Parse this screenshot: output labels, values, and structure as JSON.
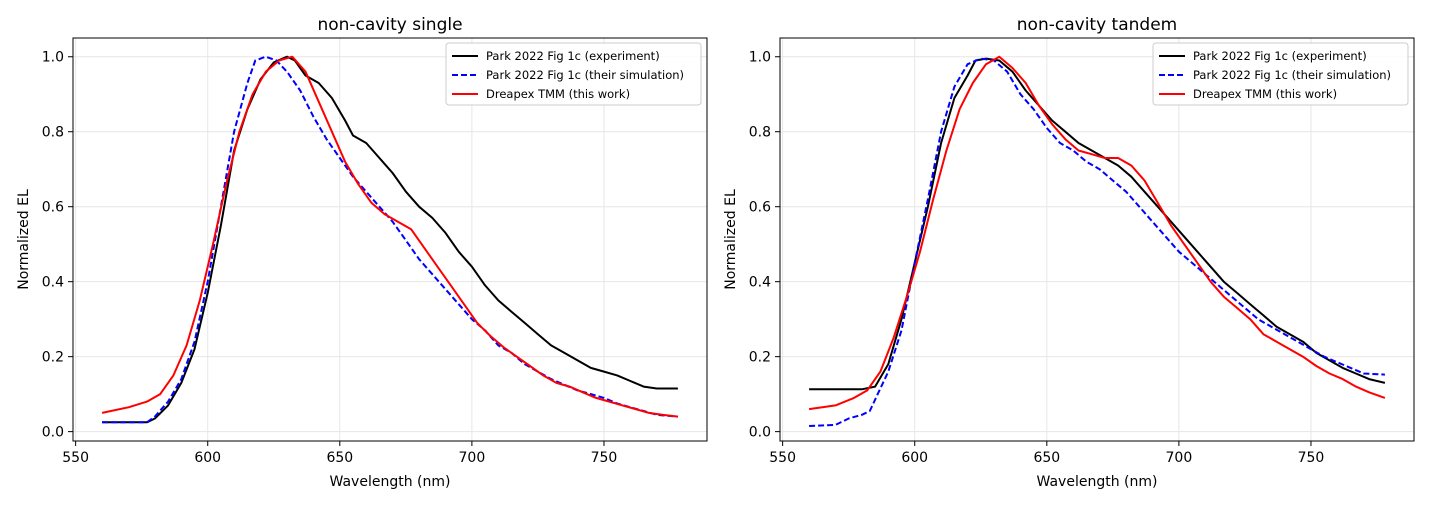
{
  "chart_data": [
    {
      "type": "line",
      "title": "non-cavity single",
      "xlabel": "Wavelength (nm)",
      "ylabel": "Normalized EL",
      "xlim": [
        549,
        789
      ],
      "ylim": [
        -0.025,
        1.05
      ],
      "xticks": [
        550,
        600,
        650,
        700,
        750
      ],
      "yticks": [
        0.0,
        0.2,
        0.4,
        0.6,
        0.8,
        1.0
      ],
      "xtick_labels": [
        "550",
        "600",
        "650",
        "700",
        "750"
      ],
      "ytick_labels": [
        "0.0",
        "0.2",
        "0.4",
        "0.6",
        "0.8",
        "1.0"
      ],
      "grid": true,
      "legend_position": "top-right",
      "series": [
        {
          "name": "Park 2022 Fig 1c (experiment)",
          "color": "#000000",
          "style": "solid",
          "x": [
            560,
            570,
            577,
            580,
            585,
            590,
            595,
            600,
            605,
            610,
            615,
            620,
            625,
            630,
            633,
            637,
            642,
            647,
            652,
            655,
            660,
            665,
            670,
            675,
            680,
            685,
            690,
            695,
            700,
            705,
            710,
            715,
            720,
            725,
            730,
            735,
            740,
            745,
            750,
            755,
            760,
            765,
            770,
            778
          ],
          "y": [
            0.025,
            0.025,
            0.025,
            0.035,
            0.07,
            0.13,
            0.22,
            0.37,
            0.55,
            0.75,
            0.86,
            0.94,
            0.985,
            1.0,
            0.99,
            0.95,
            0.93,
            0.89,
            0.83,
            0.79,
            0.77,
            0.73,
            0.69,
            0.64,
            0.6,
            0.57,
            0.53,
            0.48,
            0.44,
            0.39,
            0.35,
            0.32,
            0.29,
            0.26,
            0.23,
            0.21,
            0.19,
            0.17,
            0.16,
            0.15,
            0.135,
            0.12,
            0.115,
            0.115
          ]
        },
        {
          "name": "Park 2022 Fig 1c (their simulation)",
          "color": "#0000ff",
          "style": "dashed",
          "x": [
            560,
            570,
            577,
            580,
            585,
            590,
            595,
            600,
            605,
            610,
            615,
            618,
            622,
            626,
            630,
            635,
            640,
            645,
            650,
            655,
            660,
            665,
            670,
            675,
            680,
            685,
            690,
            695,
            700,
            705,
            710,
            715,
            720,
            725,
            730,
            735,
            740,
            745,
            750,
            755,
            760,
            765,
            770,
            778
          ],
          "y": [
            0.025,
            0.025,
            0.025,
            0.04,
            0.08,
            0.14,
            0.24,
            0.4,
            0.6,
            0.8,
            0.93,
            0.99,
            1.0,
            0.99,
            0.96,
            0.91,
            0.84,
            0.78,
            0.73,
            0.68,
            0.64,
            0.6,
            0.56,
            0.51,
            0.46,
            0.42,
            0.38,
            0.34,
            0.3,
            0.27,
            0.23,
            0.21,
            0.18,
            0.16,
            0.14,
            0.125,
            0.11,
            0.1,
            0.09,
            0.075,
            0.065,
            0.055,
            0.045,
            0.04
          ]
        },
        {
          "name": "Dreapex TMM (this work)",
          "color": "#ff0000",
          "style": "solid",
          "x": [
            560,
            570,
            577,
            582,
            587,
            592,
            597,
            602,
            607,
            612,
            617,
            622,
            627,
            632,
            637,
            642,
            647,
            652,
            657,
            662,
            667,
            672,
            677,
            682,
            687,
            692,
            697,
            702,
            707,
            712,
            717,
            722,
            727,
            732,
            737,
            742,
            747,
            752,
            757,
            762,
            767,
            772,
            778
          ],
          "y": [
            0.05,
            0.065,
            0.08,
            0.1,
            0.15,
            0.23,
            0.35,
            0.5,
            0.66,
            0.8,
            0.9,
            0.96,
            0.99,
            1.0,
            0.96,
            0.88,
            0.8,
            0.72,
            0.66,
            0.61,
            0.58,
            0.56,
            0.54,
            0.49,
            0.44,
            0.39,
            0.34,
            0.29,
            0.255,
            0.225,
            0.2,
            0.175,
            0.15,
            0.13,
            0.12,
            0.105,
            0.09,
            0.08,
            0.07,
            0.06,
            0.05,
            0.045,
            0.04
          ]
        }
      ]
    },
    {
      "type": "line",
      "title": "non-cavity tandem",
      "xlabel": "Wavelength (nm)",
      "ylabel": "Normalized EL",
      "xlim": [
        549,
        789
      ],
      "ylim": [
        -0.025,
        1.05
      ],
      "xticks": [
        550,
        600,
        650,
        700,
        750
      ],
      "yticks": [
        0.0,
        0.2,
        0.4,
        0.6,
        0.8,
        1.0
      ],
      "xtick_labels": [
        "550",
        "600",
        "650",
        "700",
        "750"
      ],
      "ytick_labels": [
        "0.0",
        "0.2",
        "0.4",
        "0.6",
        "0.8",
        "1.0"
      ],
      "grid": true,
      "legend_position": "top-right",
      "series": [
        {
          "name": "Park 2022 Fig 1c (experiment)",
          "color": "#000000",
          "style": "solid",
          "x": [
            560,
            570,
            580,
            585,
            590,
            595,
            600,
            605,
            610,
            615,
            620,
            623,
            627,
            632,
            637,
            642,
            647,
            652,
            657,
            662,
            667,
            672,
            677,
            682,
            687,
            692,
            697,
            702,
            707,
            712,
            717,
            722,
            727,
            732,
            737,
            742,
            747,
            752,
            757,
            762,
            767,
            772,
            778
          ],
          "y": [
            0.113,
            0.113,
            0.113,
            0.12,
            0.18,
            0.3,
            0.45,
            0.6,
            0.77,
            0.89,
            0.95,
            0.99,
            0.995,
            0.99,
            0.96,
            0.91,
            0.87,
            0.83,
            0.8,
            0.77,
            0.75,
            0.73,
            0.71,
            0.68,
            0.64,
            0.6,
            0.56,
            0.52,
            0.48,
            0.44,
            0.4,
            0.37,
            0.34,
            0.31,
            0.28,
            0.26,
            0.24,
            0.21,
            0.19,
            0.17,
            0.155,
            0.14,
            0.13
          ]
        },
        {
          "name": "Park 2022 Fig 1c (their simulation)",
          "color": "#0000ff",
          "style": "dashed",
          "x": [
            560,
            570,
            575,
            580,
            583,
            586,
            590,
            595,
            600,
            605,
            610,
            615,
            620,
            625,
            630,
            635,
            640,
            645,
            650,
            655,
            660,
            665,
            670,
            675,
            680,
            685,
            690,
            695,
            700,
            705,
            710,
            715,
            720,
            725,
            730,
            735,
            740,
            745,
            750,
            755,
            760,
            765,
            770,
            778
          ],
          "y": [
            0.015,
            0.018,
            0.035,
            0.045,
            0.055,
            0.1,
            0.16,
            0.27,
            0.45,
            0.62,
            0.8,
            0.92,
            0.98,
            0.995,
            0.99,
            0.96,
            0.9,
            0.86,
            0.81,
            0.77,
            0.75,
            0.72,
            0.7,
            0.67,
            0.64,
            0.6,
            0.56,
            0.52,
            0.48,
            0.45,
            0.42,
            0.39,
            0.36,
            0.33,
            0.3,
            0.28,
            0.26,
            0.24,
            0.22,
            0.2,
            0.185,
            0.17,
            0.155,
            0.152
          ]
        },
        {
          "name": "Dreapex TMM (this work)",
          "color": "#ff0000",
          "style": "solid",
          "x": [
            560,
            570,
            577,
            582,
            587,
            592,
            597,
            602,
            607,
            612,
            617,
            622,
            627,
            632,
            637,
            642,
            647,
            652,
            657,
            662,
            667,
            672,
            677,
            682,
            687,
            692,
            697,
            702,
            707,
            712,
            717,
            722,
            727,
            732,
            737,
            742,
            747,
            752,
            757,
            762,
            767,
            772,
            778
          ],
          "y": [
            0.06,
            0.07,
            0.09,
            0.11,
            0.16,
            0.25,
            0.36,
            0.48,
            0.62,
            0.75,
            0.86,
            0.93,
            0.98,
            1.0,
            0.97,
            0.93,
            0.87,
            0.82,
            0.78,
            0.75,
            0.74,
            0.73,
            0.73,
            0.71,
            0.67,
            0.61,
            0.55,
            0.5,
            0.45,
            0.4,
            0.36,
            0.33,
            0.3,
            0.26,
            0.24,
            0.22,
            0.2,
            0.175,
            0.155,
            0.14,
            0.12,
            0.105,
            0.09
          ]
        }
      ]
    }
  ]
}
